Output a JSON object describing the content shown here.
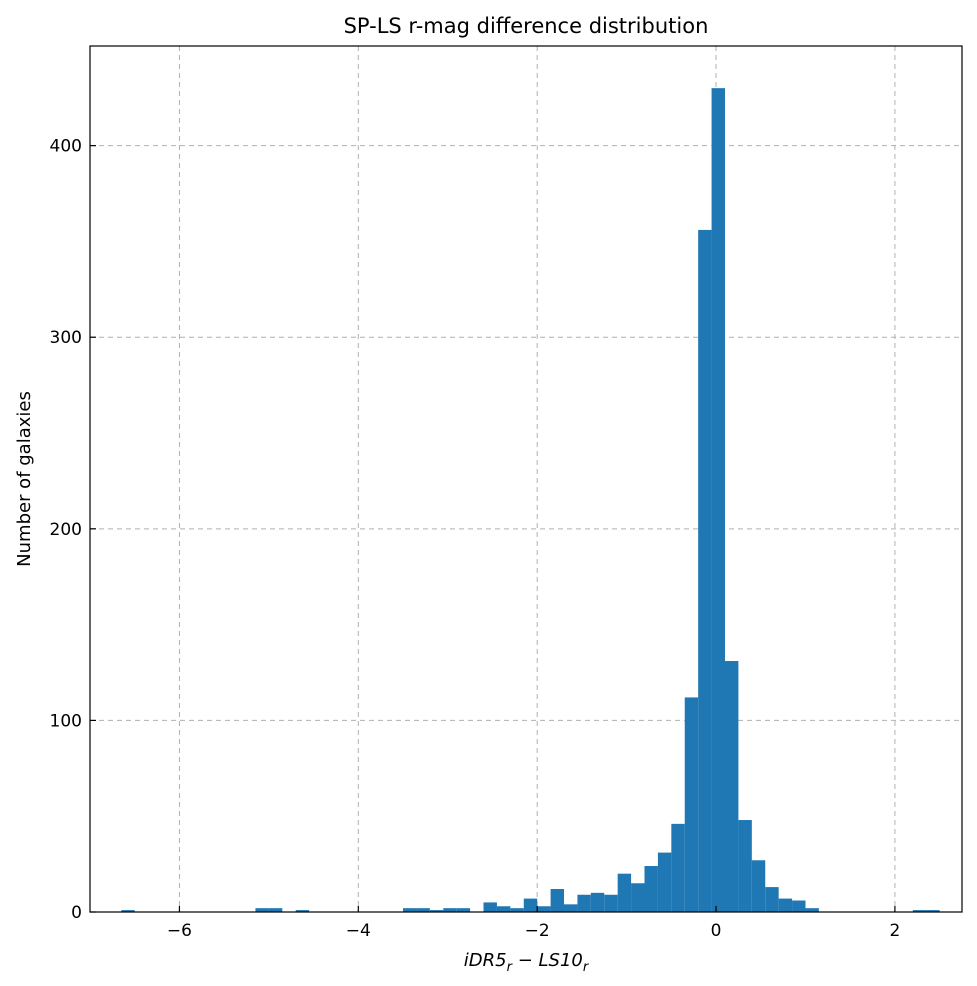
{
  "chart_data": {
    "type": "histogram",
    "title": "SP-LS r-mag difference distribution",
    "xlabel": {
      "base1": "iDR5",
      "sub1": "r",
      "minus": " − ",
      "base2": "LS10",
      "sub2": "r"
    },
    "ylabel": "Number of galaxies",
    "xlim": [
      -7.0,
      2.75
    ],
    "ylim": [
      0,
      452
    ],
    "xticks": [
      -6,
      -4,
      -2,
      0,
      2
    ],
    "xtick_labels": [
      "−6",
      "−4",
      "−2",
      "0",
      "2"
    ],
    "yticks": [
      0,
      100,
      200,
      300,
      400
    ],
    "ytick_labels": [
      "0",
      "100",
      "200",
      "300",
      "400"
    ],
    "grid": true,
    "bin_width": 0.15,
    "bin_start": -6.65,
    "counts": [
      1,
      0,
      0,
      0,
      0,
      0,
      0,
      0,
      0,
      0,
      2,
      2,
      0,
      1,
      0,
      0,
      0,
      0,
      0,
      0,
      0,
      2,
      2,
      1,
      2,
      2,
      0,
      5,
      3,
      2,
      7,
      3,
      12,
      4,
      9,
      10,
      9,
      20,
      15,
      24,
      31,
      46,
      112,
      356,
      430,
      131,
      48,
      27,
      13,
      7,
      6,
      2,
      0,
      0,
      0,
      0,
      0,
      0,
      0,
      1,
      1
    ],
    "color": "#1f77b4"
  }
}
